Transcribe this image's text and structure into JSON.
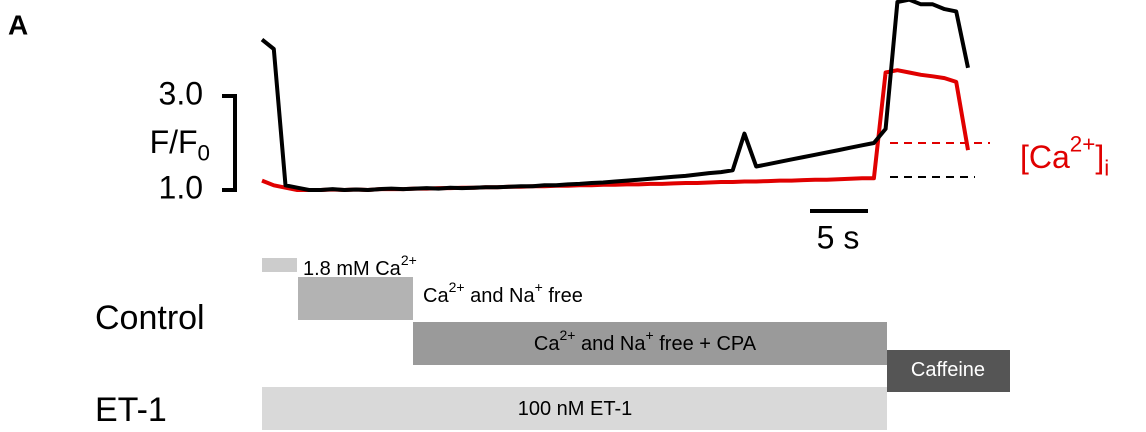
{
  "chart_data": {
    "type": "line",
    "panel_label": "A",
    "y_label": [
      {
        "t": "F/F"
      },
      {
        "t": "0",
        "pos": "sub"
      }
    ],
    "series_label": [
      {
        "t": "[Ca"
      },
      {
        "t": "2+",
        "pos": "sup"
      },
      {
        "t": "]"
      },
      {
        "t": "i",
        "pos": "sub"
      }
    ],
    "series_label_color": "#e00000",
    "time_scale_label": "5 s",
    "ylim": [
      1,
      5
    ],
    "yticks": [
      {
        "value": 3,
        "label": "3.0"
      },
      {
        "value": 1,
        "label": "1.0"
      }
    ],
    "series": [
      {
        "name": "Control",
        "color": "#000000",
        "values": [
          4.2,
          4.0,
          1.1,
          1.05,
          1.0,
          1.0,
          1.02,
          1.0,
          1.01,
          1.0,
          1.02,
          1.03,
          1.02,
          1.03,
          1.04,
          1.03,
          1.05,
          1.04,
          1.05,
          1.06,
          1.06,
          1.07,
          1.08,
          1.08,
          1.1,
          1.1,
          1.12,
          1.13,
          1.15,
          1.16,
          1.18,
          1.2,
          1.22,
          1.24,
          1.26,
          1.28,
          1.3,
          1.33,
          1.36,
          1.38,
          1.42,
          2.2,
          1.5,
          1.55,
          1.6,
          1.65,
          1.7,
          1.75,
          1.8,
          1.85,
          1.9,
          1.95,
          2.0,
          2.3,
          5.0,
          5.05,
          4.95,
          4.95,
          4.85,
          4.8,
          3.6
        ]
      },
      {
        "name": "ET-1",
        "color": "#e00000",
        "values": [
          1.2,
          1.1,
          1.05,
          1.0,
          1.0,
          1.0,
          1.01,
          1.0,
          1.01,
          1.0,
          1.02,
          1.02,
          1.02,
          1.03,
          1.03,
          1.04,
          1.04,
          1.05,
          1.05,
          1.06,
          1.06,
          1.07,
          1.07,
          1.08,
          1.08,
          1.09,
          1.09,
          1.1,
          1.1,
          1.11,
          1.11,
          1.12,
          1.12,
          1.13,
          1.13,
          1.14,
          1.15,
          1.15,
          1.16,
          1.17,
          1.17,
          1.18,
          1.18,
          1.19,
          1.2,
          1.2,
          1.21,
          1.22,
          1.22,
          1.23,
          1.24,
          1.25,
          1.25,
          3.5,
          3.55,
          3.5,
          3.45,
          3.42,
          3.38,
          3.3,
          1.85
        ]
      }
    ],
    "protocol": [
      {
        "label": [
          {
            "t": "1.8 mM Ca"
          },
          {
            "t": "2+",
            "pos": "sup"
          }
        ],
        "color": "#cccccc",
        "text_color": "#000000"
      },
      {
        "label": [
          {
            "t": "Ca"
          },
          {
            "t": "2+",
            "pos": "sup"
          },
          {
            "t": " and Na"
          },
          {
            "t": "+",
            "pos": "sup"
          },
          {
            "t": " free"
          }
        ],
        "color": "#b3b3b3",
        "text_color": "#000000"
      },
      {
        "label": [
          {
            "t": "Ca"
          },
          {
            "t": "2+",
            "pos": "sup"
          },
          {
            "t": " and Na"
          },
          {
            "t": "+",
            "pos": "sup"
          },
          {
            "t": " free + CPA"
          }
        ],
        "color": "#9a9a9a",
        "text_color": "#000000"
      },
      {
        "label": [
          {
            "t": "Caffeine"
          }
        ],
        "color": "#555555",
        "text_color": "#ffffff"
      },
      {
        "label": [
          {
            "t": "100 nM ET-1"
          }
        ],
        "color": "#d9d9d9",
        "text_color": "#000000"
      }
    ]
  }
}
